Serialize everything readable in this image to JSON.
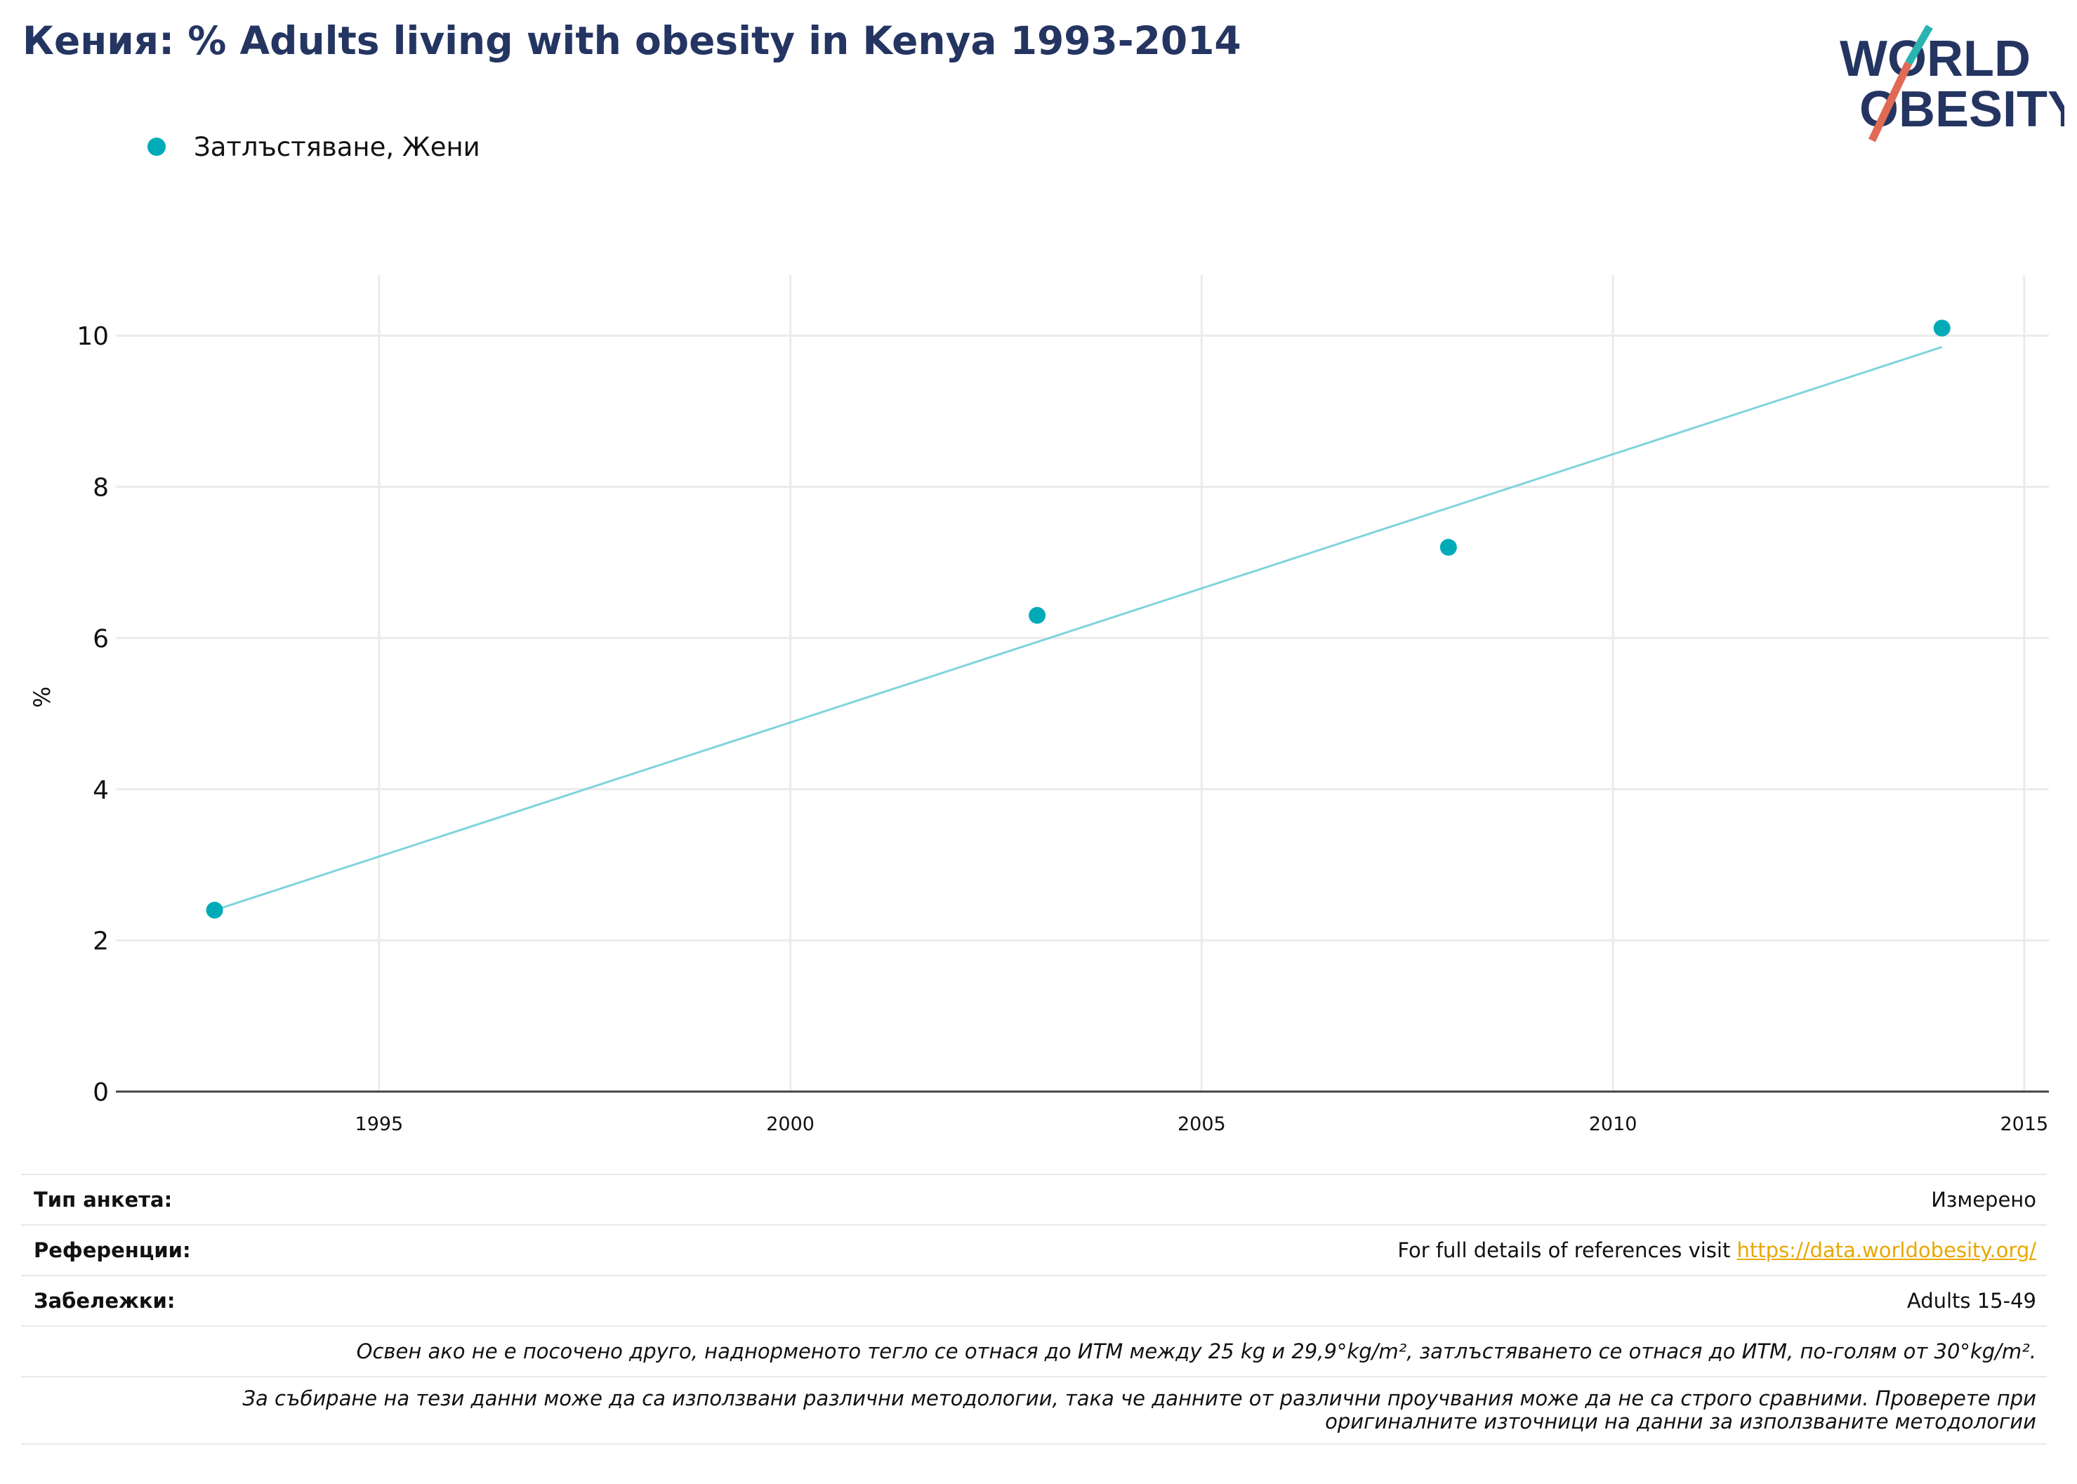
{
  "title": "Кения: % Adults living with obesity in Kenya 1993-2014",
  "logo": {
    "line1": "WORLD",
    "line2": "OBESITY"
  },
  "colors": {
    "series": "#00aab7",
    "trend": "#7fd4dc",
    "title": "#253562",
    "grid": "#ebebeb",
    "link": "#e8a800",
    "logo_slash_teal": "#2ab3b0",
    "logo_slash_red": "#e06a55"
  },
  "chart_data": {
    "type": "scatter",
    "series": [
      {
        "name": "Затлъстяване, Жени",
        "x": [
          1993,
          2003,
          2008,
          2014
        ],
        "y": [
          2.4,
          6.3,
          7.2,
          10.1
        ]
      }
    ],
    "trendline": {
      "x": [
        1993,
        2014
      ],
      "y": [
        2.4,
        9.85
      ]
    },
    "xlim": [
      1991.8,
      2015.3
    ],
    "ylim": [
      0,
      10.8
    ],
    "x_ticks": [
      1995,
      2000,
      2005,
      2010,
      2015
    ],
    "y_ticks": [
      0,
      2,
      4,
      6,
      8,
      10
    ],
    "xlabel": "",
    "ylabel": "%",
    "grid": true,
    "legend_position": "top-left"
  },
  "footer": {
    "survey_type": {
      "label": "Тип анкета:",
      "value": "Измерено"
    },
    "references": {
      "label": "Референции:",
      "value_prefix": "For full details of references visit ",
      "link": "https://data.worldobesity.org/"
    },
    "notes": {
      "label": "Забележки:",
      "value": "Adults 15-49"
    },
    "note_bmi": "Освен ако не е посочено друго, наднорменото тегло се отнася до ИТМ между 25 kg и 29,9°kg/m², затлъстяването се отнася до ИТМ, по-голям от 30°kg/m².",
    "note_methods_line1": "За събиране на тези данни може да са използвани различни методологии, така че данните от различни проучвания може да не са строго сравними. Проверете при",
    "note_methods_line2": "оригиналните източници на данни за използваните методологии"
  }
}
